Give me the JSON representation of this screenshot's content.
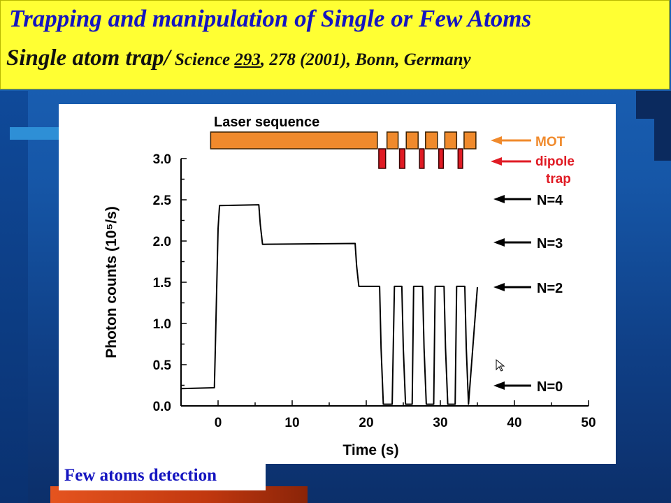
{
  "slide": {
    "title": "Trapping and manipulation of Single or Few Atoms",
    "subtitle_main": "Single atom trap/",
    "subtitle_ref_a": " Science ",
    "subtitle_ref_vol": "293",
    "subtitle_ref_b": ", 278 (2001), Bonn, Germany",
    "caption": "Few atoms detection",
    "colors": {
      "header_bg": "#ffff33",
      "title_text": "#1515c0",
      "background": "#1657a8",
      "mot_orange": "#f08a2c",
      "dipole_red": "#e01b24"
    }
  },
  "chart_data": {
    "type": "line",
    "xlabel": "Time (s)",
    "ylabel": "Photon counts (10⁵/s)",
    "xlim": [
      -5,
      50
    ],
    "ylim": [
      0,
      3.0
    ],
    "xticks": [
      0,
      10,
      20,
      30,
      40,
      50
    ],
    "yticks": [
      0.0,
      0.5,
      1.0,
      1.5,
      2.0,
      2.5,
      3.0
    ],
    "ytick_labels": [
      "0.0",
      "0.5",
      "1.0",
      "1.5",
      "2.0",
      "2.5",
      "3.0"
    ],
    "grid": false,
    "series": [
      {
        "x": [
          -5,
          -0.5,
          -0.4,
          0.0,
          0.2,
          5.5,
          5.7,
          6.0,
          18.5,
          18.7,
          19.0,
          21.8,
          22.0,
          22.3,
          23.5,
          23.8,
          24.0,
          24.8,
          25.0,
          25.3,
          26.2,
          26.4,
          26.6,
          27.6,
          27.8,
          28.1,
          29.1,
          29.3,
          29.5,
          30.5,
          30.7,
          31.0,
          32.0,
          32.2,
          32.4,
          33.3,
          33.5,
          33.8,
          35.0
        ],
        "y": [
          0.21,
          0.22,
          0.6,
          2.15,
          2.43,
          2.44,
          2.2,
          1.96,
          1.97,
          1.7,
          1.45,
          1.45,
          0.7,
          0.02,
          0.02,
          1.45,
          1.45,
          1.45,
          0.7,
          0.02,
          0.02,
          1.45,
          1.45,
          1.45,
          0.7,
          0.02,
          0.02,
          1.45,
          1.45,
          1.45,
          0.7,
          0.02,
          0.02,
          1.45,
          1.45,
          1.45,
          0.7,
          0.02,
          1.44
        ]
      }
    ],
    "laser_sequence": {
      "label": "Laser sequence",
      "mot": [
        [
          -1,
          21.5
        ],
        [
          22.8,
          24.3
        ],
        [
          25.4,
          27.0
        ],
        [
          28.0,
          29.6
        ],
        [
          30.6,
          32.2
        ],
        [
          33.2,
          34.8
        ]
      ],
      "dipole": [
        [
          21.5,
          22.8
        ],
        [
          24.3,
          25.4
        ],
        [
          27.0,
          28.0
        ],
        [
          29.6,
          30.6
        ],
        [
          32.2,
          33.2
        ]
      ],
      "mot_label": "MOT",
      "dipole_label_1": "dipole",
      "dipole_label_2": "trap"
    },
    "level_annotations": [
      {
        "label": "N=4",
        "y": 2.5
      },
      {
        "label": "N=3",
        "y": 2.0
      },
      {
        "label": "N=2",
        "y": 1.45
      },
      {
        "label": "N=0",
        "y": 0.25
      }
    ]
  }
}
